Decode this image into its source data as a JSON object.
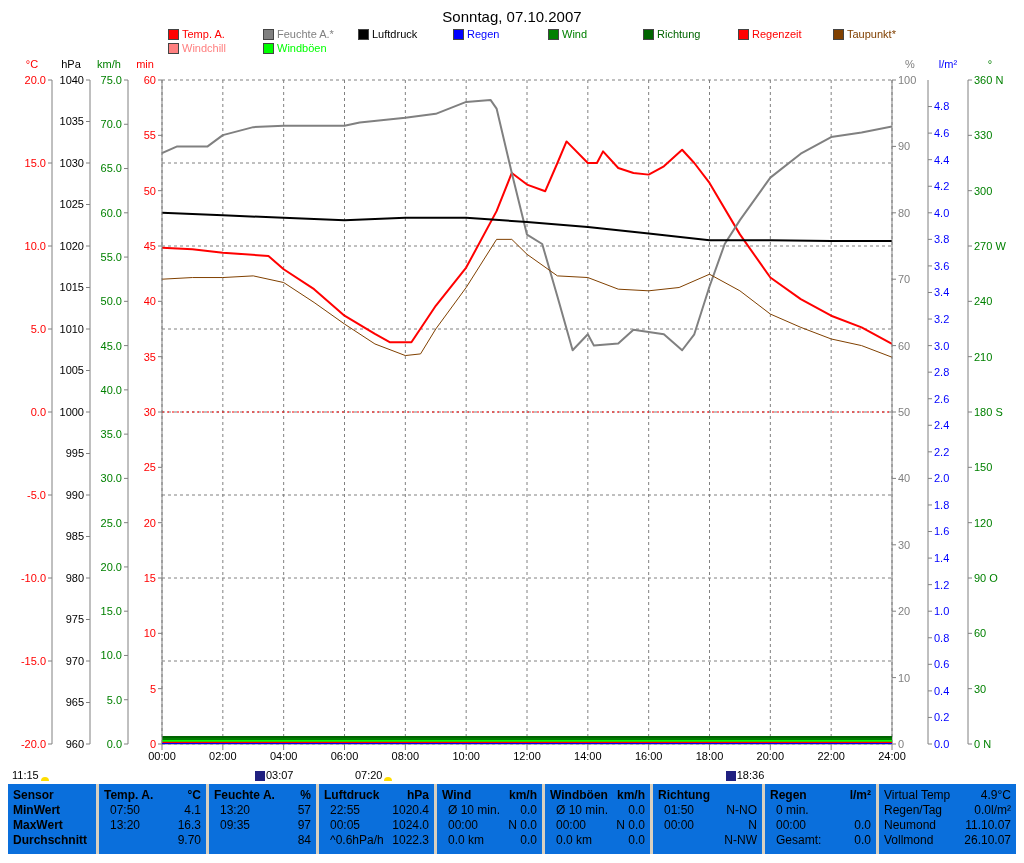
{
  "chart_data": [
    {
      "type": "line",
      "title": "Sonntag, 07.10.2007",
      "ylabel": "°C",
      "y2label": "%",
      "y3label": "hPa",
      "xlim": [
        0,
        24
      ],
      "xticks": [
        {
          "value": 0,
          "label": "00:00"
        },
        {
          "value": 2,
          "label": "02:00"
        },
        {
          "value": 4,
          "label": "04:00"
        },
        {
          "value": 6,
          "label": "06:00"
        },
        {
          "value": 8,
          "label": "08:00"
        },
        {
          "value": 10,
          "label": "10:00"
        },
        {
          "value": 12,
          "label": "12:00"
        },
        {
          "value": 14,
          "label": "14:00"
        },
        {
          "value": 16,
          "label": "16:00"
        },
        {
          "value": 18,
          "label": "18:00"
        },
        {
          "value": 20,
          "label": "20:00"
        },
        {
          "value": 22,
          "label": "22:00"
        },
        {
          "value": 24,
          "label": "24:00"
        }
      ],
      "ylim": [
        -20,
        20
      ],
      "yticks": [
        {
          "value": -20,
          "label": "-20.0"
        },
        {
          "value": -15,
          "label": "-15.0"
        },
        {
          "value": -10,
          "label": "-10.0"
        },
        {
          "value": -5,
          "label": "-5.0"
        },
        {
          "value": 0,
          "label": "0.0"
        },
        {
          "value": 5,
          "label": "5.0"
        },
        {
          "value": 10,
          "label": "10.0"
        },
        {
          "value": 15,
          "label": "15.0"
        },
        {
          "value": 20,
          "label": "20.0"
        }
      ],
      "y2lim": [
        0,
        100
      ],
      "y2ticks": [
        0,
        10,
        20,
        30,
        40,
        50,
        60,
        70,
        80,
        90,
        100
      ],
      "y3lim": [
        960,
        1040
      ],
      "y3ticks": [
        960,
        965,
        970,
        975,
        980,
        985,
        990,
        995,
        1000,
        1005,
        1010,
        1015,
        1020,
        1025,
        1030,
        1035,
        1040
      ],
      "grid": true,
      "legend": "top",
      "ref_lines": [
        {
          "axis": "y",
          "value": 0,
          "color": "#ff0000",
          "line_style": "dotted"
        }
      ],
      "annotations": [
        "11:15",
        "03:07",
        "07:20",
        "18:36"
      ],
      "series": [
        {
          "name": "Temp. A.",
          "color": "#ff0000",
          "x": [
            0,
            1,
            2,
            3.5,
            4,
            5,
            6,
            7,
            7.5,
            8.2,
            9,
            10,
            11,
            11.5,
            12,
            12.6,
            13,
            13.3,
            14,
            14.3,
            14.5,
            15,
            15.5,
            16,
            16.5,
            17.1,
            17.5,
            18,
            19,
            20,
            21,
            22,
            23,
            24
          ],
          "values": [
            9.9,
            9.8,
            9.6,
            9.4,
            8.6,
            7.4,
            5.8,
            4.7,
            4.2,
            4.2,
            6.4,
            8.7,
            12.1,
            14.4,
            13.7,
            13.3,
            15,
            16.3,
            15,
            15,
            15.7,
            14.7,
            14.4,
            14.3,
            14.8,
            15.8,
            15,
            13.8,
            10.7,
            8.1,
            6.8,
            5.8,
            5.1,
            4.1
          ]
        },
        {
          "name": "Windchill",
          "color": "#ff8080"
        },
        {
          "name": "Feuchte A.*",
          "color": "#808080",
          "axis": "y2",
          "x": [
            0,
            0.5,
            1.5,
            2,
            3,
            4,
            6,
            6.5,
            8,
            9,
            10,
            10.8,
            11,
            11.5,
            12,
            12.5,
            13,
            13.5,
            14,
            14.2,
            15,
            15.5,
            16.5,
            17.1,
            17.5,
            18,
            18.5,
            19,
            20,
            21,
            22,
            23,
            24
          ],
          "values": [
            89,
            90,
            90,
            91.7,
            92.9,
            93.1,
            93.1,
            93.6,
            94.3,
            94.9,
            96.7,
            97,
            95.7,
            86,
            76.7,
            75.3,
            67.4,
            59.3,
            61.7,
            60,
            60.3,
            62.4,
            61.7,
            59.3,
            61.7,
            68.9,
            75.3,
            78.9,
            85.3,
            88.9,
            91.4,
            92.1,
            93
          ]
        },
        {
          "name": "Luftdruck",
          "color": "#000000",
          "axis": "y3",
          "x": [
            0,
            2,
            4,
            6,
            8,
            10,
            12,
            14,
            16,
            18,
            20,
            22,
            24
          ],
          "values": [
            1024,
            1023.7,
            1023.4,
            1023.1,
            1023.4,
            1023.4,
            1022.9,
            1022.3,
            1021.5,
            1020.7,
            1020.7,
            1020.6,
            1020.6
          ]
        },
        {
          "name": "Taupunkt*",
          "color": "#804000",
          "x": [
            0,
            1,
            2,
            3,
            4,
            5,
            6,
            7,
            8,
            8.5,
            9,
            10,
            11,
            11.5,
            12,
            13,
            14,
            15,
            16,
            17,
            18,
            19,
            20,
            21,
            22,
            23,
            24
          ],
          "values": [
            8,
            8.1,
            8.1,
            8.2,
            7.8,
            6.6,
            5.3,
            4.1,
            3.4,
            3.5,
            5,
            7.5,
            10.4,
            10.4,
            9.5,
            8.2,
            8.1,
            7.4,
            7.3,
            7.5,
            8.3,
            7.3,
            5.9,
            5.1,
            4.4,
            4,
            3.3
          ]
        }
      ]
    },
    {
      "type": "line",
      "ylabel": "km/h",
      "xlim": [
        0,
        24
      ],
      "tick_labels": "y",
      "legend": "top",
      "series": [
        {
          "name": "Wind",
          "color": "#008000",
          "x": [
            0,
            24
          ],
          "values": [
            0,
            0
          ]
        },
        {
          "name": "Windböen",
          "color": "#00ff00",
          "x": [
            0,
            24
          ],
          "values": [
            0,
            0
          ]
        }
      ],
      "ylim": [
        0,
        75
      ],
      "yticks": [
        {
          "value": 0,
          "label": "0.0"
        },
        {
          "value": 5,
          "label": "5.0"
        },
        {
          "value": 10,
          "label": "10.0"
        },
        {
          "value": 15,
          "label": "15.0"
        },
        {
          "value": 20,
          "label": "20.0"
        },
        {
          "value": 25,
          "label": "25.0"
        },
        {
          "value": 30,
          "label": "30.0"
        },
        {
          "value": 35,
          "label": "35.0"
        },
        {
          "value": 40,
          "label": "40.0"
        },
        {
          "value": 45,
          "label": "45.0"
        },
        {
          "value": 50,
          "label": "50.0"
        },
        {
          "value": 55,
          "label": "55.0"
        },
        {
          "value": 60,
          "label": "60.0"
        },
        {
          "value": 65,
          "label": "65.0"
        },
        {
          "value": 70,
          "label": "70.0"
        },
        {
          "value": 75,
          "label": "75.0"
        }
      ],
      "grid": false
    },
    {
      "type": "line",
      "ylabel": "min",
      "xlim": [
        0,
        24
      ],
      "tick_labels": "y",
      "legend": "top",
      "ylim": [
        0,
        60
      ],
      "yticks": [
        0,
        5,
        10,
        15,
        20,
        25,
        30,
        35,
        40,
        45,
        50,
        55,
        60
      ],
      "series": [
        {
          "name": "Regenzeit",
          "color": "#ff0000",
          "x": [
            0,
            24
          ],
          "values": [
            0,
            0
          ]
        }
      ]
    },
    {
      "type": "line",
      "ylabel": "l/m²",
      "xlim": [
        0,
        24
      ],
      "tick_labels": "y",
      "legend": "top",
      "ylim": [
        0,
        5
      ],
      "yticks": [
        {
          "value": 0,
          "label": "0.0"
        },
        {
          "value": 0.2,
          "label": "0.2"
        },
        {
          "value": 0.4,
          "label": "0.4"
        },
        {
          "value": 0.6,
          "label": "0.6"
        },
        {
          "value": 0.8,
          "label": "0.8"
        },
        {
          "value": 1,
          "label": "1.0"
        },
        {
          "value": 1.2,
          "label": "1.2"
        },
        {
          "value": 1.4,
          "label": "1.4"
        },
        {
          "value": 1.6,
          "label": "1.6"
        },
        {
          "value": 1.8,
          "label": "1.8"
        },
        {
          "value": 2,
          "label": "2.0"
        },
        {
          "value": 2.2,
          "label": "2.2"
        },
        {
          "value": 2.4,
          "label": "2.4"
        },
        {
          "value": 2.6,
          "label": "2.6"
        },
        {
          "value": 2.8,
          "label": "2.8"
        },
        {
          "value": 3,
          "label": "3.0"
        },
        {
          "value": 3.2,
          "label": "3.2"
        },
        {
          "value": 3.4,
          "label": "3.4"
        },
        {
          "value": 3.6,
          "label": "3.6"
        },
        {
          "value": 3.8,
          "label": "3.8"
        },
        {
          "value": 4,
          "label": "4.0"
        },
        {
          "value": 4.2,
          "label": "4.2"
        },
        {
          "value": 4.4,
          "label": "4.4"
        },
        {
          "value": 4.6,
          "label": "4.6"
        },
        {
          "value": 4.8,
          "label": "4.8"
        }
      ],
      "series": [
        {
          "name": "Regen",
          "color": "#0000ff",
          "x": [
            0,
            24
          ],
          "values": [
            0,
            0
          ]
        }
      ]
    },
    {
      "type": "line",
      "ylabel": "°",
      "xlim": [
        0,
        24
      ],
      "tick_labels": "y",
      "legend": "top",
      "series": [
        {
          "name": "Richtung",
          "color": "#006400",
          "x": [
            0,
            24
          ],
          "values": [
            0,
            0
          ]
        }
      ],
      "ylim": [
        0,
        360
      ],
      "yticks": [
        {
          "value": 0,
          "label": "0 N"
        },
        30,
        60,
        {
          "value": 90,
          "label": "90 O"
        },
        120,
        150,
        {
          "value": 180,
          "label": "180 S"
        },
        210,
        240,
        {
          "value": 270,
          "label": "270 W"
        },
        300,
        330,
        {
          "value": 360,
          "label": "360 N"
        }
      ]
    },
    {
      "type": "other",
      "annotations": [
        "Sensor",
        "MinWert",
        "MaxWert",
        "Durchschnitt",
        "Temp. A.",
        "°C",
        "07:50",
        "4.1",
        "13:20",
        "16.3",
        "9.70",
        "Feuchte A.",
        "%",
        "13:20",
        "57",
        "09:35",
        "97",
        "84",
        "Luftdruck",
        "hPa",
        "22:55",
        "1020.4",
        "00:05",
        "1024.0",
        "^0.6hPa/h",
        "1022.3",
        "Wind",
        "km/h",
        "Ø 10 min.",
        "0.0",
        "00:00",
        "N 0.0",
        "0.0 km",
        "0.0",
        "Windböen",
        "km/h",
        "Ø 10 min.",
        "0.0",
        "00:00",
        "N 0.0",
        "0.0 km",
        "0.0",
        "Richtung",
        "01:50",
        "N-NO",
        "00:00",
        "N",
        "N-NW",
        "Regen",
        "l/m²",
        "0 min.",
        "00:00",
        "0.0",
        "Gesamt:",
        "0.0",
        "Virtual Temp",
        "4.9°C",
        "Regen/Tag",
        "0.0l/m²",
        "Neumond",
        "11.10.07",
        "Vollmond",
        "26.10.07"
      ]
    }
  ]
}
